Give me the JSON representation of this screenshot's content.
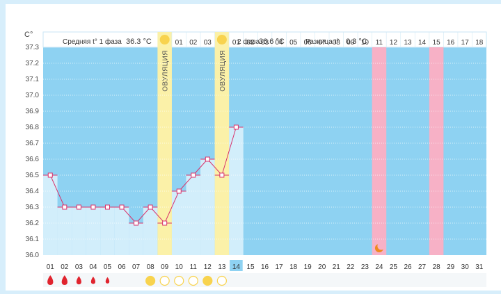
{
  "chart_data": {
    "type": "line",
    "y_unit": "C°",
    "ylim": [
      36.0,
      37.3
    ],
    "y_ticks": [
      "37.3",
      "37.2",
      "37.1",
      "37.0",
      "36.9",
      "36.8",
      "36.7",
      "36.6",
      "36.5",
      "36.4",
      "36.3",
      "36.2",
      "36.1",
      "36.0"
    ],
    "days": [
      "01",
      "02",
      "03",
      "04",
      "05",
      "06",
      "07",
      "08",
      "09",
      "10",
      "11",
      "12",
      "13",
      "14",
      "15",
      "16",
      "17",
      "18",
      "19",
      "20",
      "21",
      "22",
      "23",
      "24",
      "25",
      "26",
      "27",
      "28",
      "29",
      "30",
      "31"
    ],
    "temperatures": [
      36.5,
      36.3,
      36.3,
      36.3,
      36.3,
      36.3,
      36.2,
      36.3,
      36.2,
      36.4,
      36.5,
      36.6,
      36.5,
      36.8
    ],
    "current_day": "14",
    "phase_labels": {
      "phase1": "Средняя t° 1 фаза",
      "phase1_value": "36.3 °C",
      "phase2": "2 фаза",
      "phase2_value": "36.6 °C",
      "diff": "Разница t°",
      "diff_value": "0.3 °C"
    },
    "ovulation_label": "ОВУЛЯЦИЯ",
    "ovulation_days": [
      "09",
      "13"
    ],
    "highlight_days": [
      "24",
      "28"
    ],
    "phase_day_counters": [
      "01",
      "02",
      "03",
      "01",
      "02",
      "03",
      "04",
      "05",
      "06",
      "07",
      "08",
      "09",
      "10",
      "11",
      "12",
      "13",
      "14",
      "15",
      "16",
      "17",
      "18"
    ],
    "moon_day": "24",
    "bleeding_days": [
      "01",
      "02",
      "03",
      "04",
      "05"
    ],
    "circle_markers": [
      {
        "day": "08",
        "filled": true
      },
      {
        "day": "09",
        "filled": false
      },
      {
        "day": "10",
        "filled": false
      },
      {
        "day": "11",
        "filled": false
      },
      {
        "day": "12",
        "filled": true
      },
      {
        "day": "13",
        "filled": false
      }
    ],
    "grid": true,
    "colors": {
      "plot_bg": "#8ed2f2",
      "filled_bar": "#d2eefb",
      "ovulation": "#fbf1a8",
      "highlight": "#f7b1c6",
      "line": "#d9326b",
      "sun": "#f8d34e",
      "drop": "#e0242e",
      "moon": "#f08a1e",
      "current_day_bg": "#8ed2f2"
    }
  }
}
